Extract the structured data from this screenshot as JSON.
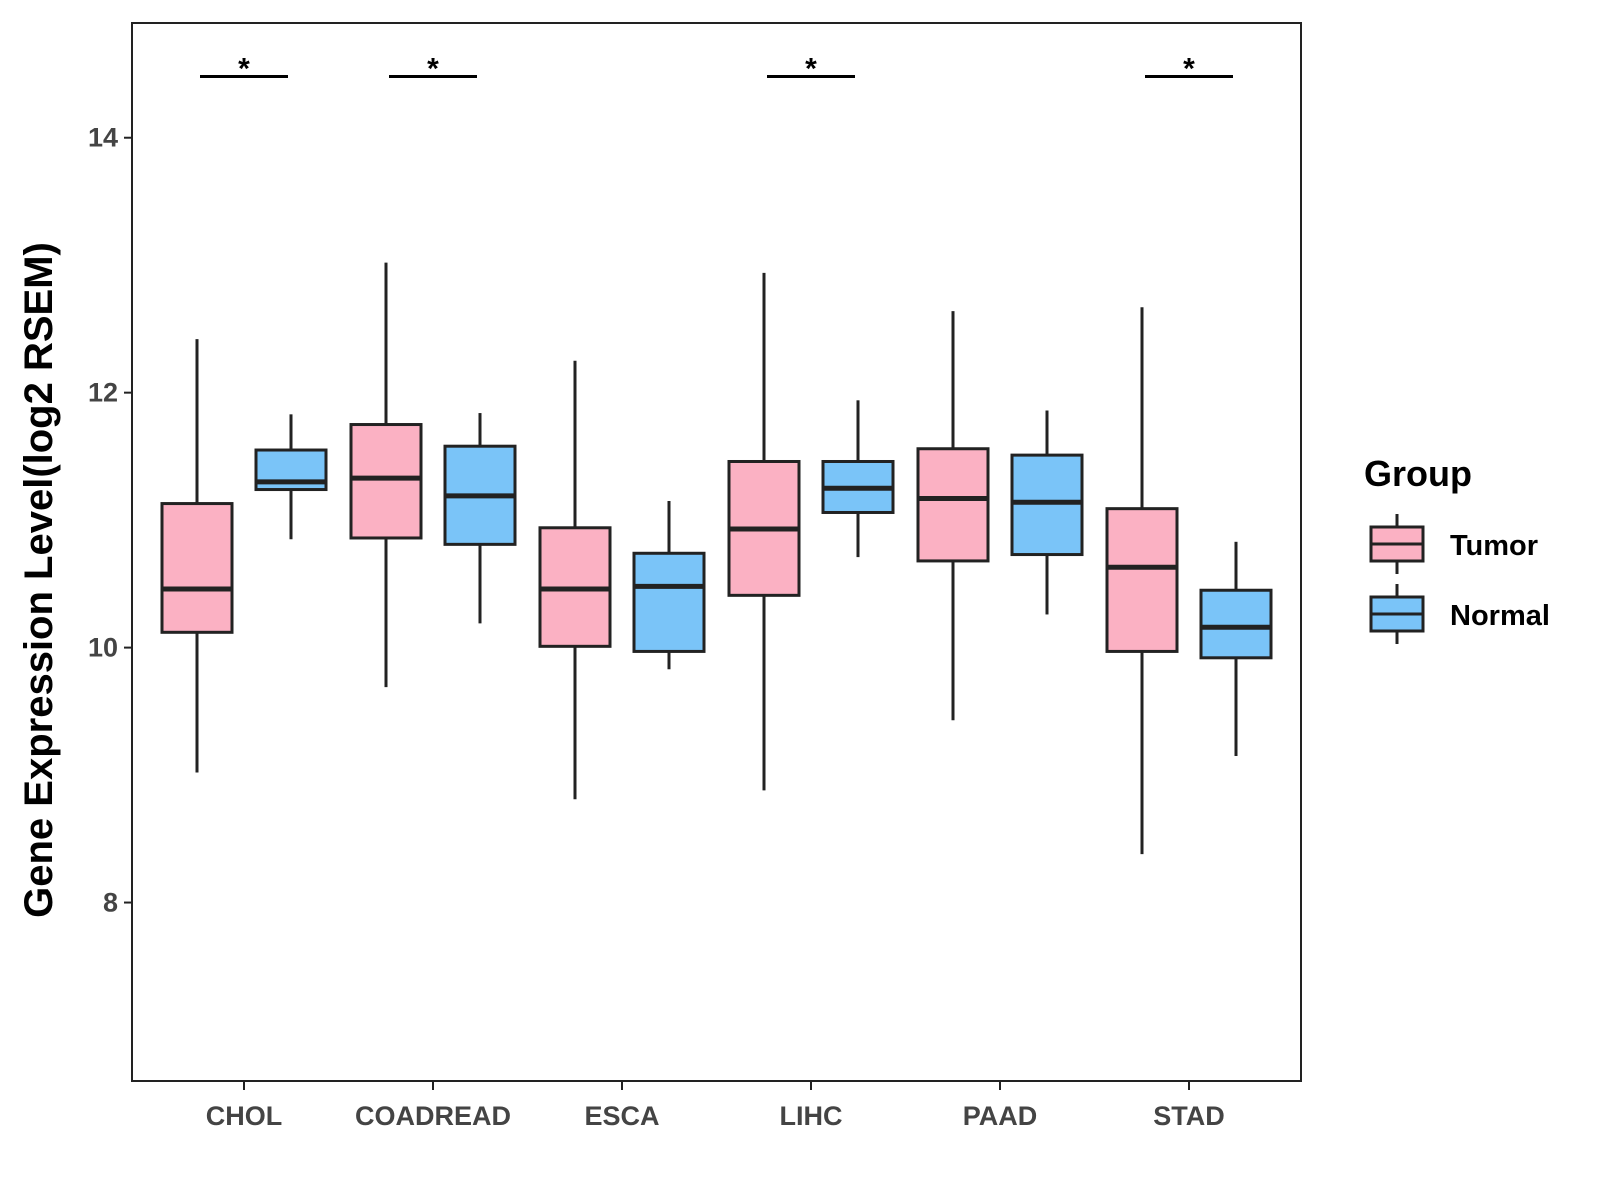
{
  "chart_data": {
    "type": "boxplot",
    "title": "",
    "xlabel": "",
    "ylabel": "Gene Expression Level(log2 RSEM)",
    "ylim": [
      6.6,
      14.9
    ],
    "yticks": [
      8,
      10,
      12,
      14
    ],
    "grid": false,
    "legend": {
      "title": "Group",
      "placement": "right",
      "entries": [
        {
          "name": "Tumor",
          "color": "#FBB1C3"
        },
        {
          "name": "Normal",
          "color": "#7AC4F8"
        }
      ]
    },
    "categories": [
      "CHOL",
      "COADREAD",
      "ESCA",
      "LIHC",
      "PAAD",
      "STAD"
    ],
    "series": [
      {
        "name": "Tumor",
        "color": "#FBB1C3",
        "boxes": [
          {
            "min": 9.02,
            "q1": 10.12,
            "median": 10.46,
            "q3": 11.13,
            "max": 12.42
          },
          {
            "min": 9.69,
            "q1": 10.86,
            "median": 11.33,
            "q3": 11.75,
            "max": 13.02
          },
          {
            "min": 8.81,
            "q1": 10.01,
            "median": 10.46,
            "q3": 10.94,
            "max": 12.25
          },
          {
            "min": 8.88,
            "q1": 10.41,
            "median": 10.93,
            "q3": 11.46,
            "max": 12.94
          },
          {
            "min": 9.43,
            "q1": 10.68,
            "median": 11.17,
            "q3": 11.56,
            "max": 12.64
          },
          {
            "min": 8.38,
            "q1": 9.97,
            "median": 10.63,
            "q3": 11.09,
            "max": 12.67
          }
        ]
      },
      {
        "name": "Normal",
        "color": "#7AC4F8",
        "boxes": [
          {
            "min": 10.85,
            "q1": 11.24,
            "median": 11.3,
            "q3": 11.55,
            "max": 11.83
          },
          {
            "min": 10.19,
            "q1": 10.81,
            "median": 11.19,
            "q3": 11.58,
            "max": 11.84
          },
          {
            "min": 9.83,
            "q1": 9.97,
            "median": 10.48,
            "q3": 10.74,
            "max": 11.15
          },
          {
            "min": 10.71,
            "q1": 11.06,
            "median": 11.25,
            "q3": 11.46,
            "max": 11.94
          },
          {
            "min": 10.26,
            "q1": 10.73,
            "median": 11.14,
            "q3": 11.51,
            "max": 11.86
          },
          {
            "min": 9.15,
            "q1": 9.92,
            "median": 10.16,
            "q3": 10.45,
            "max": 10.83
          }
        ]
      }
    ],
    "annotations": [
      {
        "category": "CHOL",
        "label": "*",
        "y": 14.48
      },
      {
        "category": "COADREAD",
        "label": "*",
        "y": 14.48
      },
      {
        "category": "LIHC",
        "label": "*",
        "y": 14.48
      },
      {
        "category": "STAD",
        "label": "*",
        "y": 14.48
      }
    ]
  }
}
